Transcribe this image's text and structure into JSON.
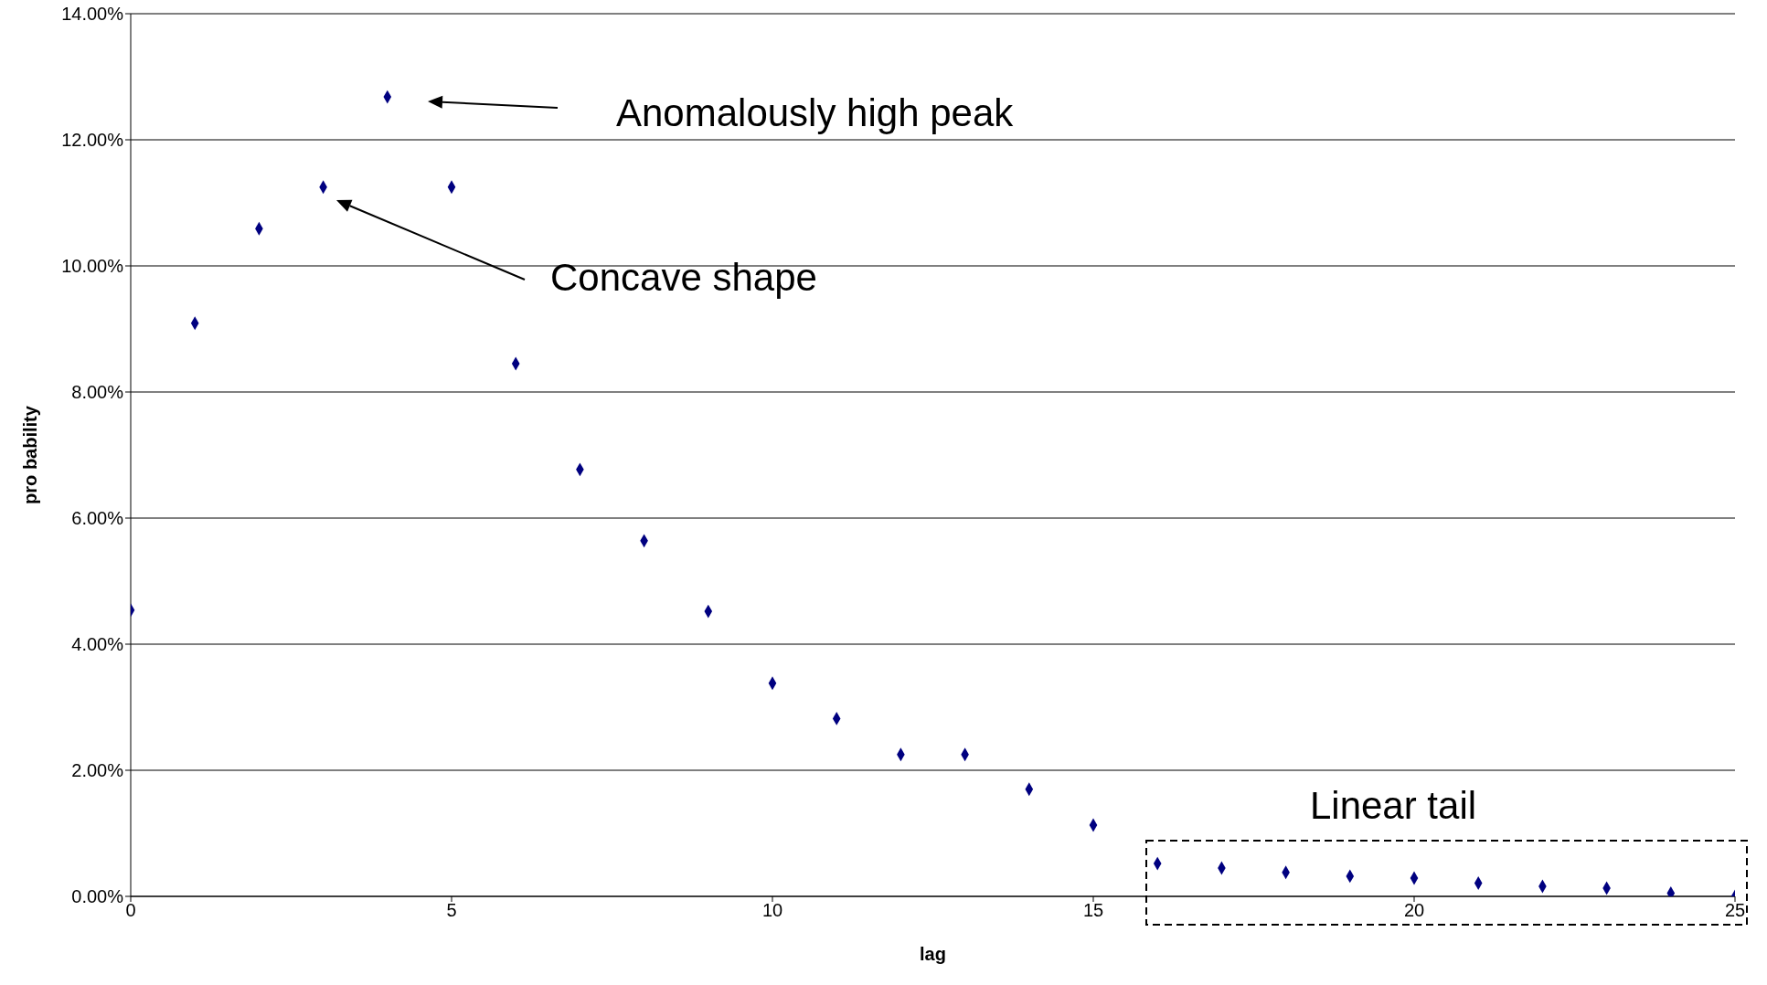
{
  "chart_data": {
    "type": "scatter",
    "xlabel": "lag",
    "ylabel": "pro bability",
    "x": [
      0,
      1,
      2,
      3,
      4,
      5,
      6,
      7,
      8,
      9,
      10,
      11,
      12,
      13,
      14,
      15,
      16,
      17,
      18,
      19,
      20,
      21,
      22,
      23,
      24,
      25
    ],
    "series": [
      {
        "color": "#000080",
        "values": [
          4.54,
          9.09,
          10.59,
          11.25,
          12.68,
          11.25,
          8.45,
          6.77,
          5.64,
          4.52,
          3.38,
          2.82,
          2.25,
          2.25,
          1.7,
          1.13,
          0.52,
          0.45,
          0.38,
          0.32,
          0.29,
          0.21,
          0.16,
          0.13,
          0.05,
          0
        ]
      }
    ],
    "xlim": [
      0,
      25
    ],
    "xticks": [
      0,
      5,
      10,
      15,
      20,
      25
    ],
    "ylim": [
      0,
      14
    ],
    "yticks": [
      {
        "value": 0,
        "label": "0.00%"
      },
      {
        "value": 2,
        "label": "2.00%"
      },
      {
        "value": 4,
        "label": "4.00%"
      },
      {
        "value": 6,
        "label": "6.00%"
      },
      {
        "value": 8,
        "label": "8.00%"
      },
      {
        "value": 10,
        "label": "10.00%"
      },
      {
        "value": 12,
        "label": "12.00%"
      },
      {
        "value": 14,
        "label": "14.00%"
      }
    ],
    "grid": "y",
    "marker": "diamond",
    "annotations": [
      "Anomalously high peak",
      "Concave shape",
      "Linear tail"
    ]
  }
}
